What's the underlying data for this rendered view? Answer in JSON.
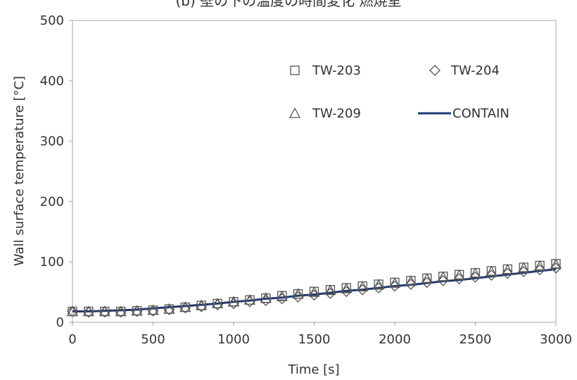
{
  "chart_data": {
    "type": "scatter",
    "title": "(b) 壁の下の温度の時間変化 燃焼室",
    "xlabel": "Time [s]",
    "ylabel": "Wall surface temperature [°C]",
    "xlim": [
      0,
      3000
    ],
    "ylim": [
      0,
      500
    ],
    "xticks": [
      "0",
      "500",
      "1000",
      "1500",
      "2000",
      "2500",
      "3000"
    ],
    "yticks": [
      "0",
      "100",
      "200",
      "300",
      "400",
      "500"
    ],
    "grid": false,
    "legend_position": "top-right",
    "x": [
      0,
      100,
      200,
      300,
      400,
      500,
      600,
      700,
      800,
      900,
      1000,
      1100,
      1200,
      1300,
      1400,
      1500,
      1600,
      1700,
      1800,
      1900,
      2000,
      2100,
      2200,
      2300,
      2400,
      2500,
      2600,
      2700,
      2800,
      2900,
      3000
    ],
    "series": [
      {
        "name": "TW-203",
        "marker": "square",
        "color": "#555555",
        "values": [
          18,
          18,
          18,
          18,
          19,
          20,
          22,
          25,
          28,
          31,
          34,
          37,
          40,
          44,
          47,
          51,
          54,
          57,
          60,
          63,
          66,
          69,
          73,
          76,
          79,
          82,
          85,
          88,
          91,
          94,
          97
        ]
      },
      {
        "name": "TW-204",
        "marker": "diamond",
        "color": "#555555",
        "values": [
          18,
          17,
          17,
          17,
          18,
          19,
          21,
          24,
          26,
          29,
          31,
          34,
          36,
          39,
          42,
          45,
          48,
          51,
          54,
          57,
          60,
          63,
          66,
          69,
          72,
          75,
          78,
          81,
          84,
          87,
          90
        ]
      },
      {
        "name": "TW-209",
        "marker": "triangle",
        "color": "#555555",
        "values": [
          18,
          18,
          18,
          18,
          19,
          20,
          22,
          25,
          28,
          31,
          34,
          37,
          40,
          43,
          47,
          50,
          53,
          56,
          59,
          62,
          65,
          68,
          72,
          75,
          78,
          81,
          84,
          87,
          90,
          93,
          96
        ]
      },
      {
        "name": "CONTAIN",
        "marker": "line",
        "color": "#1f3b73",
        "values": [
          18,
          18,
          19,
          20,
          21,
          23,
          25,
          27,
          29,
          31,
          34,
          36,
          39,
          41,
          44,
          46,
          49,
          52,
          54,
          57,
          60,
          62,
          65,
          68,
          70,
          73,
          76,
          79,
          82,
          85,
          88
        ]
      }
    ]
  }
}
